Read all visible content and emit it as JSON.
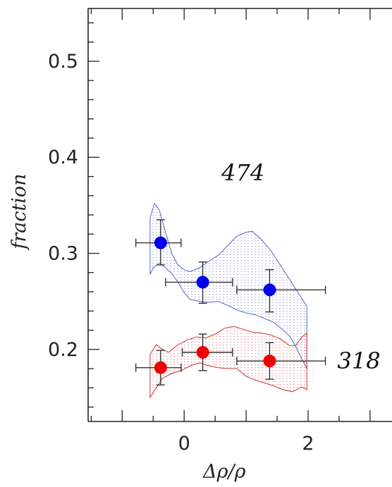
{
  "chart_data": {
    "type": "scatter",
    "xlabel": "Δρ/ρ",
    "ylabel": "fraction",
    "xlim": [
      -1.55,
      3.4
    ],
    "ylim": [
      0.125,
      0.555
    ],
    "x_ticks": [
      0,
      2
    ],
    "y_ticks": [
      0.2,
      0.3,
      0.4,
      0.5
    ],
    "x_tick_labels": [
      "0",
      "2"
    ],
    "y_tick_labels": [
      "0.2",
      "0.3",
      "0.4",
      "0.5"
    ],
    "x_minor_step": 0.5,
    "y_minor_step": 0.02,
    "grid": false,
    "series": [
      {
        "label": "474",
        "color": "#0000ee",
        "band_color": "#5566cc",
        "points": [
          {
            "x": -0.38,
            "y": 0.311,
            "xlo": -0.78,
            "xhi": -0.05,
            "ylo": 0.288,
            "yhi": 0.335
          },
          {
            "x": 0.3,
            "y": 0.27,
            "xlo": -0.3,
            "xhi": 0.78,
            "ylo": 0.248,
            "yhi": 0.291
          },
          {
            "x": 1.38,
            "y": 0.262,
            "xlo": 0.85,
            "xhi": 2.28,
            "ylo": 0.239,
            "yhi": 0.283
          }
        ],
        "band_upper": [
          [
            -0.55,
            0.337
          ],
          [
            -0.48,
            0.352
          ],
          [
            -0.4,
            0.345
          ],
          [
            -0.3,
            0.322
          ],
          [
            -0.2,
            0.3
          ],
          [
            -0.1,
            0.288
          ],
          [
            0.0,
            0.283
          ],
          [
            0.1,
            0.281
          ],
          [
            0.25,
            0.285
          ],
          [
            0.4,
            0.292
          ],
          [
            0.55,
            0.298
          ],
          [
            0.7,
            0.308
          ],
          [
            0.85,
            0.318
          ],
          [
            1.0,
            0.322
          ],
          [
            1.1,
            0.323
          ],
          [
            1.25,
            0.314
          ],
          [
            1.4,
            0.303
          ],
          [
            1.55,
            0.288
          ],
          [
            1.7,
            0.273
          ],
          [
            1.85,
            0.258
          ],
          [
            1.98,
            0.245
          ]
        ],
        "band_lower": [
          [
            -0.55,
            0.278
          ],
          [
            -0.5,
            0.285
          ],
          [
            -0.4,
            0.29
          ],
          [
            -0.3,
            0.285
          ],
          [
            -0.2,
            0.279
          ],
          [
            -0.1,
            0.27
          ],
          [
            0.0,
            0.259
          ],
          [
            0.1,
            0.252
          ],
          [
            0.25,
            0.25
          ],
          [
            0.4,
            0.249
          ],
          [
            0.55,
            0.25
          ],
          [
            0.7,
            0.246
          ],
          [
            0.85,
            0.241
          ],
          [
            1.0,
            0.238
          ],
          [
            1.15,
            0.236
          ],
          [
            1.3,
            0.232
          ],
          [
            1.45,
            0.228
          ],
          [
            1.6,
            0.22
          ],
          [
            1.7,
            0.214
          ],
          [
            1.8,
            0.203
          ],
          [
            1.9,
            0.19
          ],
          [
            1.98,
            0.18
          ]
        ]
      },
      {
        "label": "318",
        "color": "#ee0000",
        "band_color": "#cc3333",
        "points": [
          {
            "x": -0.38,
            "y": 0.181,
            "xlo": -0.78,
            "xhi": -0.05,
            "ylo": 0.163,
            "yhi": 0.199
          },
          {
            "x": 0.3,
            "y": 0.197,
            "xlo": -0.03,
            "xhi": 0.78,
            "ylo": 0.178,
            "yhi": 0.216
          },
          {
            "x": 1.38,
            "y": 0.188,
            "xlo": 0.85,
            "xhi": 2.28,
            "ylo": 0.169,
            "yhi": 0.207
          }
        ],
        "band_upper": [
          [
            -0.55,
            0.195
          ],
          [
            -0.45,
            0.205
          ],
          [
            -0.35,
            0.2
          ],
          [
            -0.25,
            0.197
          ],
          [
            -0.1,
            0.205
          ],
          [
            0.05,
            0.21
          ],
          [
            0.2,
            0.213
          ],
          [
            0.35,
            0.212
          ],
          [
            0.5,
            0.216
          ],
          [
            0.65,
            0.222
          ],
          [
            0.8,
            0.224
          ],
          [
            0.95,
            0.221
          ],
          [
            1.1,
            0.218
          ],
          [
            1.25,
            0.217
          ],
          [
            1.4,
            0.215
          ],
          [
            1.55,
            0.211
          ],
          [
            1.7,
            0.204
          ],
          [
            1.8,
            0.204
          ],
          [
            1.9,
            0.213
          ],
          [
            1.98,
            0.217
          ]
        ],
        "band_lower": [
          [
            -0.55,
            0.15
          ],
          [
            -0.45,
            0.16
          ],
          [
            -0.35,
            0.17
          ],
          [
            -0.2,
            0.175
          ],
          [
            -0.05,
            0.178
          ],
          [
            0.1,
            0.183
          ],
          [
            0.25,
            0.186
          ],
          [
            0.4,
            0.183
          ],
          [
            0.55,
            0.181
          ],
          [
            0.7,
            0.18
          ],
          [
            0.85,
            0.18
          ],
          [
            1.0,
            0.172
          ],
          [
            1.15,
            0.168
          ],
          [
            1.3,
            0.165
          ],
          [
            1.45,
            0.162
          ],
          [
            1.6,
            0.158
          ],
          [
            1.75,
            0.156
          ],
          [
            1.9,
            0.161
          ],
          [
            1.98,
            0.158
          ]
        ]
      }
    ],
    "annotations": [
      {
        "text": "474",
        "x": 0.95,
        "y": 0.384
      },
      {
        "text": "318",
        "x": 2.82,
        "y": 0.188
      }
    ]
  }
}
